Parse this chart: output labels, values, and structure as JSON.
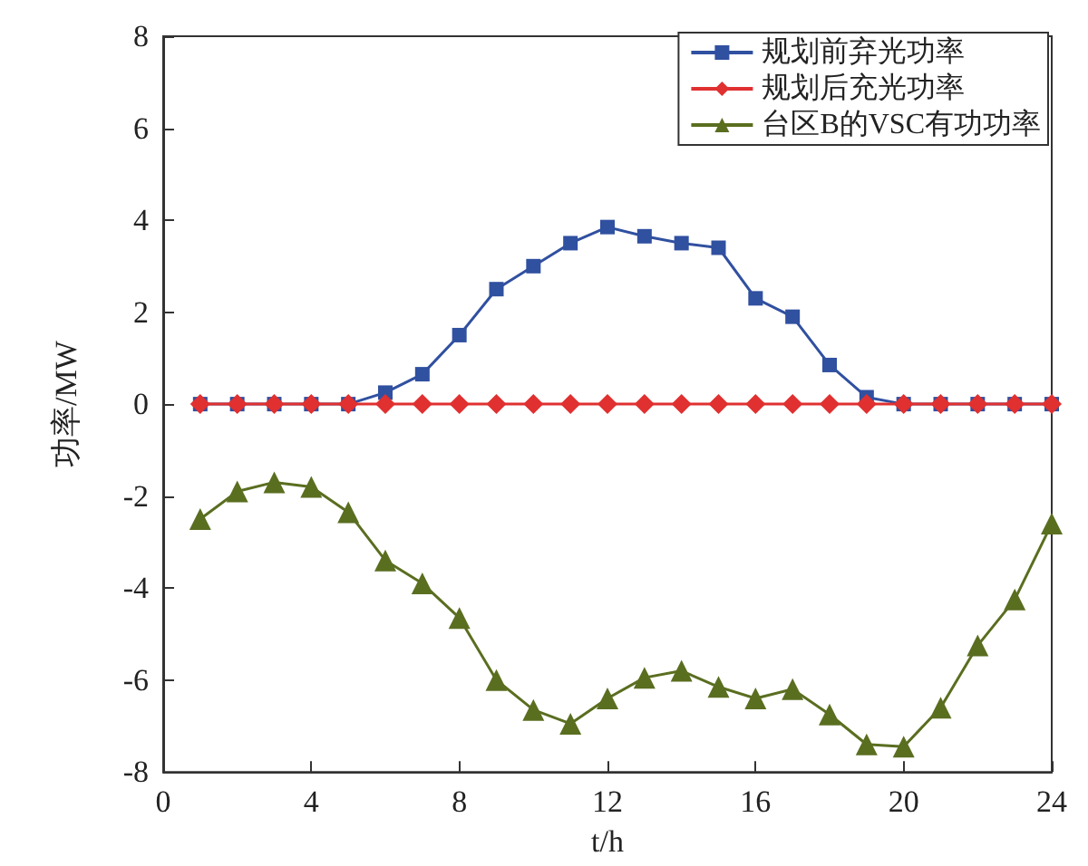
{
  "chart_data": {
    "type": "line",
    "xlabel": "t/h",
    "ylabel": "功率/MW",
    "x": [
      1,
      2,
      3,
      4,
      5,
      6,
      7,
      8,
      9,
      10,
      11,
      12,
      13,
      14,
      15,
      16,
      17,
      18,
      19,
      20,
      21,
      22,
      23,
      24
    ],
    "series": [
      {
        "name": "规划前弃光功率",
        "color": "#3050a0",
        "marker": "square",
        "values": [
          0,
          0,
          0,
          0,
          0,
          0.25,
          0.65,
          1.5,
          2.5,
          3.0,
          3.5,
          3.85,
          3.65,
          3.5,
          3.4,
          2.3,
          1.9,
          0.85,
          0.15,
          0,
          0,
          0,
          0,
          0
        ]
      },
      {
        "name": "规划后充光功率",
        "color": "#e03030",
        "marker": "diamond",
        "values": [
          0,
          0,
          0,
          0,
          0,
          0,
          0,
          0,
          0,
          0,
          0,
          0,
          0,
          0,
          0,
          0,
          0,
          0,
          0,
          0,
          0,
          0,
          0,
          0
        ]
      },
      {
        "name": "台区B的VSC有功功率",
        "color": "#5a6e20",
        "marker": "triangle",
        "values": [
          -2.5,
          -1.9,
          -1.7,
          -1.8,
          -2.35,
          -3.4,
          -3.9,
          -4.65,
          -6,
          -6.65,
          -6.95,
          -6.4,
          -5.95,
          -5.8,
          -6.15,
          -6.4,
          -6.2,
          -6.75,
          -7.4,
          -7.45,
          -6.6,
          -5.25,
          -4.25,
          -2.6
        ]
      }
    ],
    "xlim": [
      0,
      24
    ],
    "xticks": [
      0,
      4,
      8,
      12,
      16,
      20,
      24
    ],
    "ylim": [
      -8,
      8
    ],
    "yticks": [
      -8,
      -6,
      -4,
      -2,
      0,
      2,
      4,
      6,
      8
    ],
    "grid": false,
    "legend": "top right",
    "line_style": "solid"
  }
}
